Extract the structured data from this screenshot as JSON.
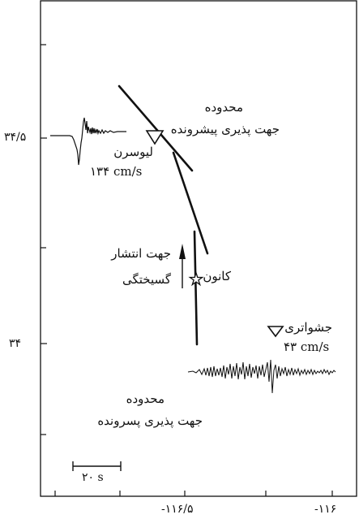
{
  "axes": {
    "y_ticks": [
      {
        "label": "۳۴/۵",
        "value": 34.5
      },
      {
        "label": "۳۴",
        "value": 34.0
      }
    ],
    "x_ticks": [
      {
        "label": "-۱۱۶/۵",
        "value": -116.5
      },
      {
        "label": "-۱۱۶",
        "value": -116.0
      }
    ]
  },
  "labels": {
    "forward_zone": [
      "محدوده",
      "جهت پذیری پیشرونده"
    ],
    "backward_zone": [
      "محدوده",
      "جهت پذیری پسرونده"
    ],
    "station_north": [
      "لیوسرن",
      "۱۳۴ cm/s"
    ],
    "station_south": [
      "جشواتری",
      "۴۳ cm/s"
    ],
    "epicenter": "کانون",
    "rupture_direction": [
      "جهت انتشار",
      "گسیختگی"
    ],
    "scale_bar": "۲۰ s"
  },
  "markers": {
    "station_symbol": "triangle-down-icon",
    "epicenter_symbol": "star-icon",
    "direction_symbol": "arrow-up-icon"
  }
}
